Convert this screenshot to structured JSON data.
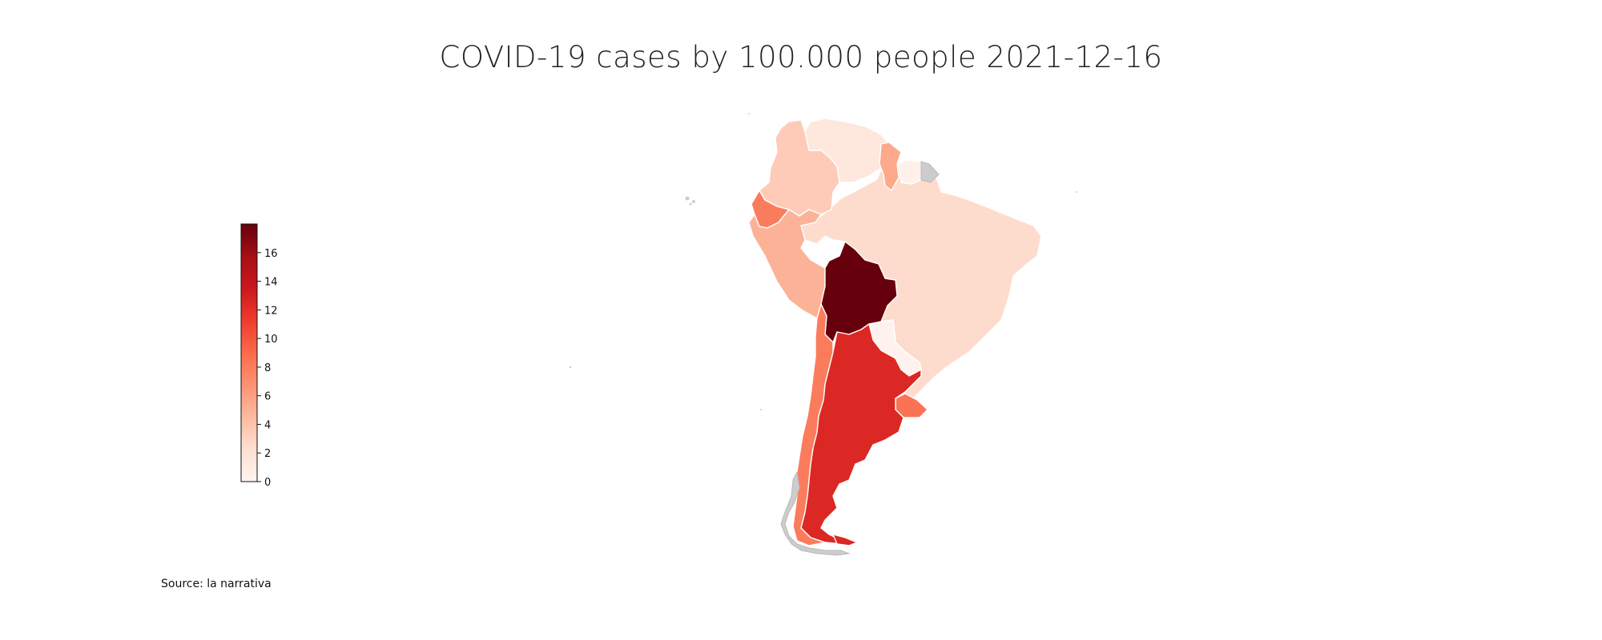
{
  "title": "COVID-19 cases by 100.000 people 2021-12-16",
  "source": "Source: la narrativa",
  "colors": {
    "scale_low": "#fff5f0",
    "scale_mid": "#fb6a4a",
    "scale_high": "#67000d",
    "no_data": "#cccccc",
    "border": "#ffffff"
  },
  "chart_data": {
    "type": "choropleth",
    "colormap": "Reds",
    "range": [
      0,
      18
    ],
    "colorbar_ticks": [
      "0",
      "2",
      "4",
      "6",
      "8",
      "10",
      "12",
      "14",
      "16"
    ],
    "regions": [
      {
        "id": "colombia",
        "value": 3.5
      },
      {
        "id": "venezuela",
        "value": 1.5
      },
      {
        "id": "guyana",
        "value": 5.5
      },
      {
        "id": "suriname",
        "value": 0.5
      },
      {
        "id": "ecuador",
        "value": 8.0
      },
      {
        "id": "peru",
        "value": 5.0
      },
      {
        "id": "brazil",
        "value": 2.5
      },
      {
        "id": "bolivia",
        "value": 18.0
      },
      {
        "id": "paraguay",
        "value": 0.3
      },
      {
        "id": "chile",
        "value": 8.0
      },
      {
        "id": "argentina",
        "value": 12.5
      },
      {
        "id": "uruguay",
        "value": 8.5
      },
      {
        "id": "french-guiana",
        "value": null
      }
    ]
  }
}
